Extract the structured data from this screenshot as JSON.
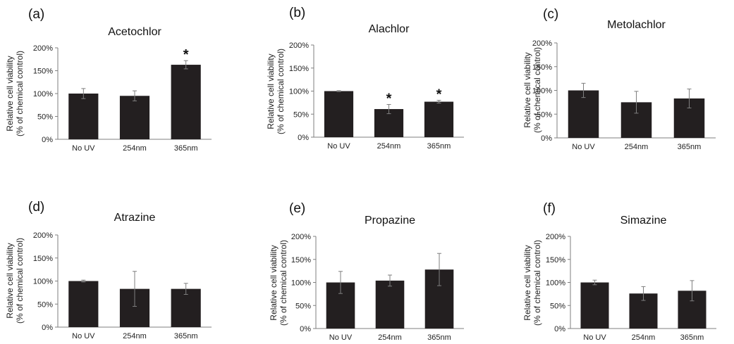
{
  "chart_data": [
    {
      "type": "bar",
      "panel": "(a)",
      "title": "Acetochlor",
      "ylabel_line1": "Relative cell viability",
      "ylabel_line2": "(% of chemical control)",
      "categories": [
        "No UV",
        "254nm",
        "365nm"
      ],
      "values": [
        100,
        95,
        163
      ],
      "errors": [
        11,
        11,
        9
      ],
      "significant": [
        "",
        "",
        "*"
      ],
      "yticks": [
        "0%",
        "50%",
        "100%",
        "150%",
        "200%"
      ],
      "ylim": [
        0,
        200
      ]
    },
    {
      "type": "bar",
      "panel": "(b)",
      "title": "Alachlor",
      "ylabel_line1": "Relative cell viability",
      "ylabel_line2": "(% of chemical control)",
      "categories": [
        "No UV",
        "254nm",
        "365nm"
      ],
      "values": [
        100,
        61,
        77
      ],
      "errors": [
        1,
        10,
        3
      ],
      "significant": [
        "",
        "*",
        "*"
      ],
      "yticks": [
        "0%",
        "50%",
        "100%",
        "150%",
        "200%"
      ],
      "ylim": [
        0,
        200
      ]
    },
    {
      "type": "bar",
      "panel": "(c)",
      "title": "Metolachlor",
      "ylabel_line1": "Relative cell viability",
      "ylabel_line2": "(% of chemical control)",
      "categories": [
        "No UV",
        "254nm",
        "365nm"
      ],
      "values": [
        100,
        75,
        83
      ],
      "errors": [
        15,
        23,
        20
      ],
      "significant": [
        "",
        "",
        ""
      ],
      "yticks": [
        "0%",
        "50%",
        "100%",
        "150%",
        "200%"
      ],
      "ylim": [
        0,
        200
      ]
    },
    {
      "type": "bar",
      "panel": "(d)",
      "title": "Atrazine",
      "ylabel_line1": "Relative cell viability",
      "ylabel_line2": "(% of chemical control)",
      "categories": [
        "No UV",
        "254nm",
        "365nm"
      ],
      "values": [
        100,
        83,
        83
      ],
      "errors": [
        2,
        38,
        12
      ],
      "significant": [
        "",
        "",
        ""
      ],
      "yticks": [
        "0%",
        "50%",
        "100%",
        "150%",
        "200%"
      ],
      "ylim": [
        0,
        200
      ]
    },
    {
      "type": "bar",
      "panel": "(e)",
      "title": "Propazine",
      "ylabel_line1": "Relative cell viability",
      "ylabel_line2": "(% of chemical control)",
      "categories": [
        "No UV",
        "254nm",
        "365nm"
      ],
      "values": [
        100,
        104,
        128
      ],
      "errors": [
        24,
        12,
        35
      ],
      "significant": [
        "",
        "",
        ""
      ],
      "yticks": [
        "0%",
        "50%",
        "100%",
        "150%",
        "200%"
      ],
      "ylim": [
        0,
        200
      ]
    },
    {
      "type": "bar",
      "panel": "(f)",
      "title": "Simazine",
      "ylabel_line1": "Relative cell viability",
      "ylabel_line2": "(% of chemical control)",
      "categories": [
        "No UV",
        "254nm",
        "365nm"
      ],
      "values": [
        100,
        76,
        82
      ],
      "errors": [
        5,
        15,
        22
      ],
      "significant": [
        "",
        "",
        ""
      ],
      "yticks": [
        "0%",
        "50%",
        "100%",
        "150%",
        "200%"
      ],
      "ylim": [
        0,
        200
      ]
    }
  ]
}
